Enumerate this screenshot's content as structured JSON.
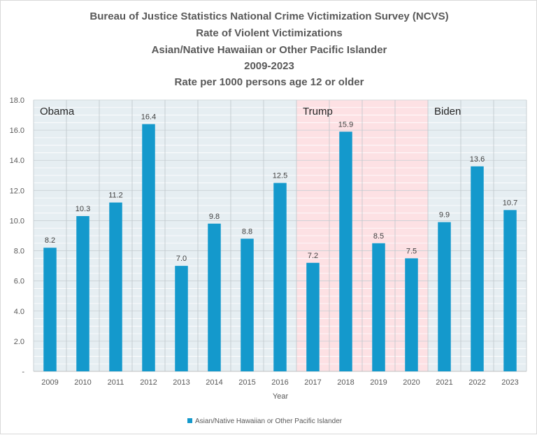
{
  "chart_data": {
    "type": "bar",
    "title_lines": [
      "Bureau of Justice Statistics National Crime Victimization Survey (NCVS)",
      "Rate of Violent Victimizations",
      "Asian/Native Hawaiian or Other Pacific Islander",
      "2009-2023",
      "Rate per 1000 persons age 12 or older"
    ],
    "xlabel": "Year",
    "ylabel": "",
    "ylim": [
      0,
      18
    ],
    "y_ticks": [
      "-",
      "2.0",
      "4.0",
      "6.0",
      "8.0",
      "10.0",
      "12.0",
      "14.0",
      "16.0",
      "18.0"
    ],
    "categories": [
      "2009",
      "2010",
      "2011",
      "2012",
      "2013",
      "2014",
      "2015",
      "2016",
      "2017",
      "2018",
      "2019",
      "2020",
      "2021",
      "2022",
      "2023"
    ],
    "series": [
      {
        "name": "Asian/Native Hawaiian or Other Pacific Islander",
        "values": [
          8.2,
          10.3,
          11.2,
          16.4,
          7.0,
          9.8,
          8.8,
          12.5,
          7.2,
          15.9,
          8.5,
          7.5,
          9.9,
          13.6,
          10.7
        ],
        "labels": [
          "8.2",
          "10.3",
          "11.2",
          "16.4",
          "7.0",
          "9.8",
          "8.8",
          "12.5",
          "7.2",
          "15.9",
          "8.5",
          "7.5",
          "9.9",
          "13.6",
          "10.7"
        ],
        "color": "#1499cc"
      }
    ],
    "regions": [
      {
        "label": "Obama",
        "start": "2009",
        "end": "2016",
        "color": "#e6eef2"
      },
      {
        "label": "Trump",
        "start": "2017",
        "end": "2020",
        "color": "#fde1e4"
      },
      {
        "label": "Biden",
        "start": "2021",
        "end": "2023",
        "color": "#e6eef2"
      }
    ],
    "grid": true,
    "legend_position": "bottom"
  }
}
